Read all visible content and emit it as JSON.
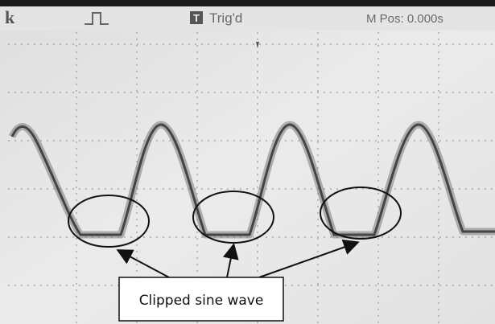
{
  "header": {
    "brand": "k",
    "trigger_icon": "T",
    "status": "Trig'd",
    "position": "M Pos: 0.000s"
  },
  "annotation": {
    "label": "Clipped sine wave"
  }
}
